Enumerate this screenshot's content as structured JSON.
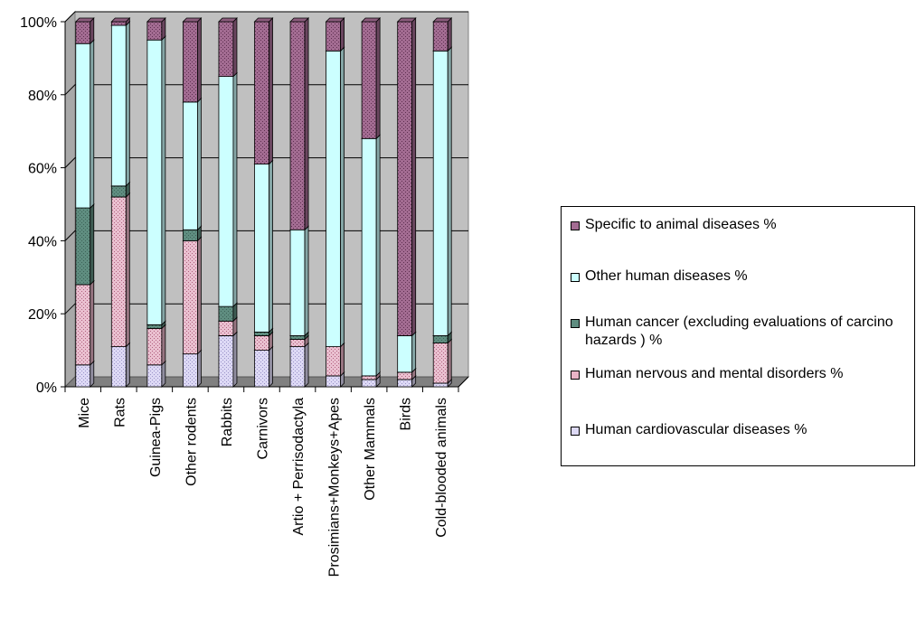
{
  "chart_data": {
    "type": "bar",
    "stacked": true,
    "percent": true,
    "categories": [
      "Mice",
      "Rats",
      "Guinea-Pigs",
      "Other rodents",
      "Rabbits",
      "Carnivors",
      "Artio + Perrisodactyla",
      "Prosimians+Monkeys+Apes",
      "Other Mammals",
      "Birds",
      "Cold-blooded animals"
    ],
    "y_ticks": [
      "0%",
      "20%",
      "40%",
      "60%",
      "80%",
      "100%"
    ],
    "ylim": [
      0,
      100
    ],
    "grid": true,
    "legend_position": "right",
    "series": [
      {
        "name": "Human cardiovascular diseases %",
        "color": "#ddd9f5",
        "values": [
          6,
          11,
          6,
          9,
          14,
          10,
          11,
          3,
          2,
          2,
          1
        ]
      },
      {
        "name": "Human nervous and mental disorders %",
        "color": "#e8b4c6",
        "values": [
          22,
          41,
          10,
          31,
          4,
          4,
          2,
          8,
          1,
          2,
          11
        ]
      },
      {
        "name": "Human cancer (excluding evaluations of carcino hazards ) %",
        "color": "#5f8d80",
        "values": [
          21,
          3,
          1,
          3,
          4,
          1,
          1,
          0,
          0,
          0,
          2
        ]
      },
      {
        "name": "Other human diseases %",
        "color": "#ccffff",
        "values": [
          45,
          44,
          78,
          35,
          63,
          46,
          29,
          81,
          65,
          10,
          78
        ]
      },
      {
        "name": "Specific to animal diseases %",
        "color": "#a36c92",
        "values": [
          6,
          1,
          5,
          22,
          15,
          39,
          57,
          8,
          32,
          86,
          8
        ]
      }
    ]
  }
}
